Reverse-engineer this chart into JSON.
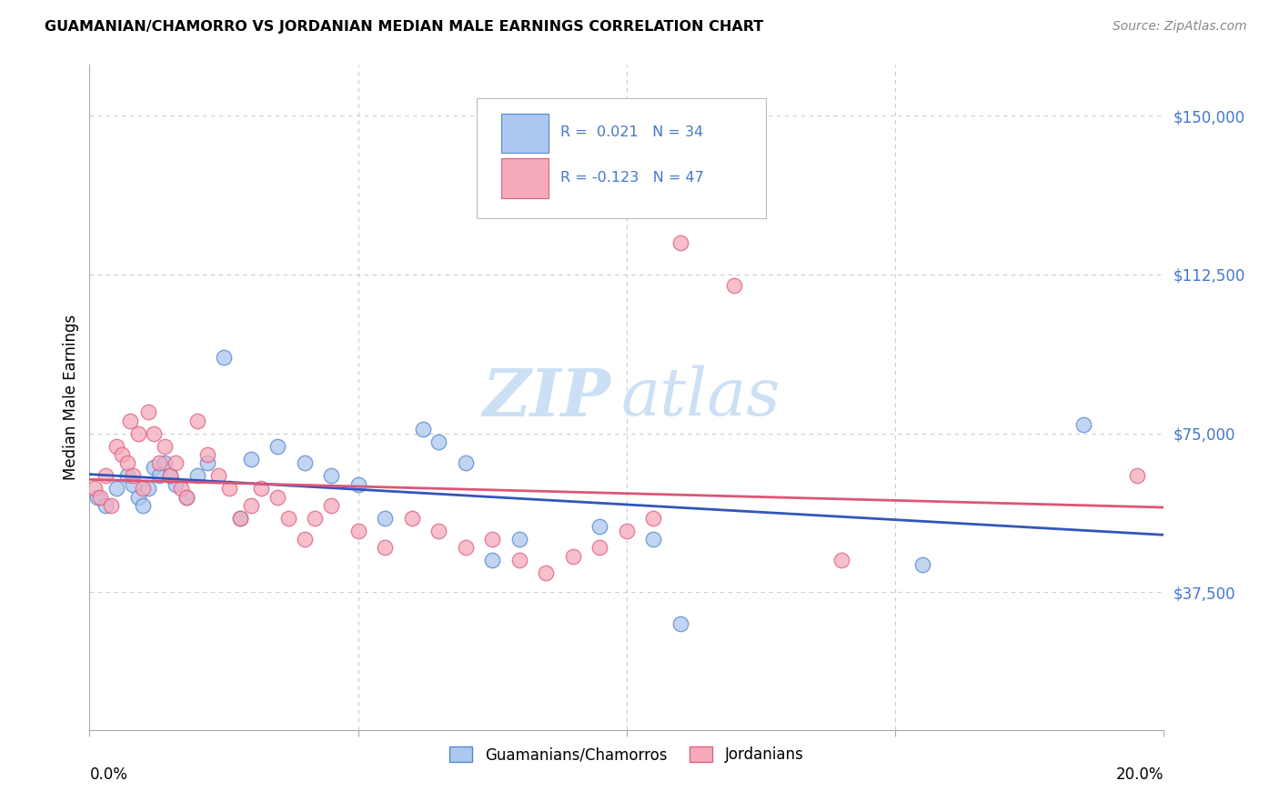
{
  "title": "GUAMANIAN/CHAMORRO VS JORDANIAN MEDIAN MALE EARNINGS CORRELATION CHART",
  "source": "Source: ZipAtlas.com",
  "ylabel": "Median Male Earnings",
  "ytick_labels": [
    "$37,500",
    "$75,000",
    "$112,500",
    "$150,000"
  ],
  "ytick_values": [
    37500,
    75000,
    112500,
    150000
  ],
  "xmin": 0.0,
  "xmax": 20.0,
  "ymin": 5000,
  "ymax": 162000,
  "legend_R1": "0.021",
  "legend_N1": "34",
  "legend_R2": "-0.123",
  "legend_N2": "47",
  "color_blue_fill": "#adc8f0",
  "color_pink_fill": "#f5aabb",
  "color_blue_edge": "#5588cc",
  "color_pink_edge": "#e06080",
  "color_blue_line": "#3355bb",
  "color_pink_line": "#dd5577",
  "color_blue_text": "#4477cc",
  "color_axis_text": "#4477cc",
  "watermark_color": "#cce0f5",
  "background_color": "#ffffff",
  "grid_color": "#cccccc",
  "marker_size": 140,
  "blue_points_x": [
    0.15,
    0.3,
    0.5,
    0.7,
    0.8,
    0.9,
    1.0,
    1.1,
    1.2,
    1.3,
    1.4,
    1.5,
    1.6,
    1.8,
    2.0,
    2.2,
    2.5,
    2.8,
    3.0,
    3.5,
    4.0,
    4.5,
    5.0,
    5.5,
    6.2,
    6.5,
    7.0,
    7.5,
    8.0,
    9.5,
    10.5,
    11.0,
    15.5,
    18.5
  ],
  "blue_points_y": [
    60000,
    58000,
    62000,
    65000,
    63000,
    60000,
    58000,
    62000,
    67000,
    65000,
    68000,
    65000,
    63000,
    60000,
    65000,
    68000,
    93000,
    55000,
    69000,
    72000,
    68000,
    65000,
    63000,
    55000,
    76000,
    73000,
    68000,
    45000,
    50000,
    53000,
    50000,
    30000,
    44000,
    77000
  ],
  "pink_points_x": [
    0.1,
    0.2,
    0.3,
    0.4,
    0.5,
    0.6,
    0.7,
    0.75,
    0.8,
    0.9,
    1.0,
    1.1,
    1.2,
    1.3,
    1.4,
    1.5,
    1.6,
    1.7,
    1.8,
    2.0,
    2.2,
    2.4,
    2.6,
    2.8,
    3.0,
    3.2,
    3.5,
    3.7,
    4.0,
    4.2,
    4.5,
    5.0,
    5.5,
    6.0,
    6.5,
    7.0,
    7.5,
    8.0,
    8.5,
    9.0,
    9.5,
    10.0,
    10.5,
    11.0,
    12.0,
    14.0,
    19.5
  ],
  "pink_points_y": [
    62000,
    60000,
    65000,
    58000,
    72000,
    70000,
    68000,
    78000,
    65000,
    75000,
    62000,
    80000,
    75000,
    68000,
    72000,
    65000,
    68000,
    62000,
    60000,
    78000,
    70000,
    65000,
    62000,
    55000,
    58000,
    62000,
    60000,
    55000,
    50000,
    55000,
    58000,
    52000,
    48000,
    55000,
    52000,
    48000,
    50000,
    45000,
    42000,
    46000,
    48000,
    52000,
    55000,
    120000,
    110000,
    45000,
    65000
  ]
}
